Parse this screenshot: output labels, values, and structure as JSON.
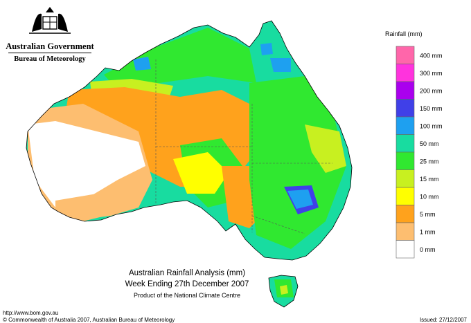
{
  "header": {
    "government": "Australian Government",
    "bureau": "Bureau of Meteorology"
  },
  "legend": {
    "title": "Rainfall (mm)",
    "items": [
      {
        "label": "400 mm",
        "color": "#ff66aa"
      },
      {
        "label": "300 mm",
        "color": "#ff33dd"
      },
      {
        "label": "200 mm",
        "color": "#aa00ee"
      },
      {
        "label": "150 mm",
        "color": "#4040e8"
      },
      {
        "label": "100 mm",
        "color": "#1ea0f0"
      },
      {
        "label": "50 mm",
        "color": "#18dca0"
      },
      {
        "label": "25 mm",
        "color": "#30e830"
      },
      {
        "label": "15 mm",
        "color": "#c8f020"
      },
      {
        "label": "10 mm",
        "color": "#ffff00"
      },
      {
        "label": "5 mm",
        "color": "#ffa21c"
      },
      {
        "label": "1 mm",
        "color": "#fdbe70"
      },
      {
        "label": "0 mm",
        "color": "#ffffff"
      }
    ]
  },
  "caption": {
    "line1": "Australian Rainfall Analysis (mm)",
    "line2": "Week Ending 27th December 2007",
    "line3": "Product of the National Climate Centre"
  },
  "footer": {
    "url": "http://www.bom.gov.au",
    "copyright": "© Commonwealth of Australia 2007, Australian Bureau of Meteorology",
    "issued": "Issued: 27/12/2007"
  },
  "colors": {
    "white": "#ffffff",
    "light_orange": "#fdbe70",
    "orange": "#ffa21c",
    "yellow": "#ffff00",
    "yellow_green": "#c8f020",
    "green": "#30e830",
    "teal": "#18dca0",
    "sky": "#1ea0f0",
    "blue": "#4040e8",
    "purple": "#aa00ee"
  }
}
